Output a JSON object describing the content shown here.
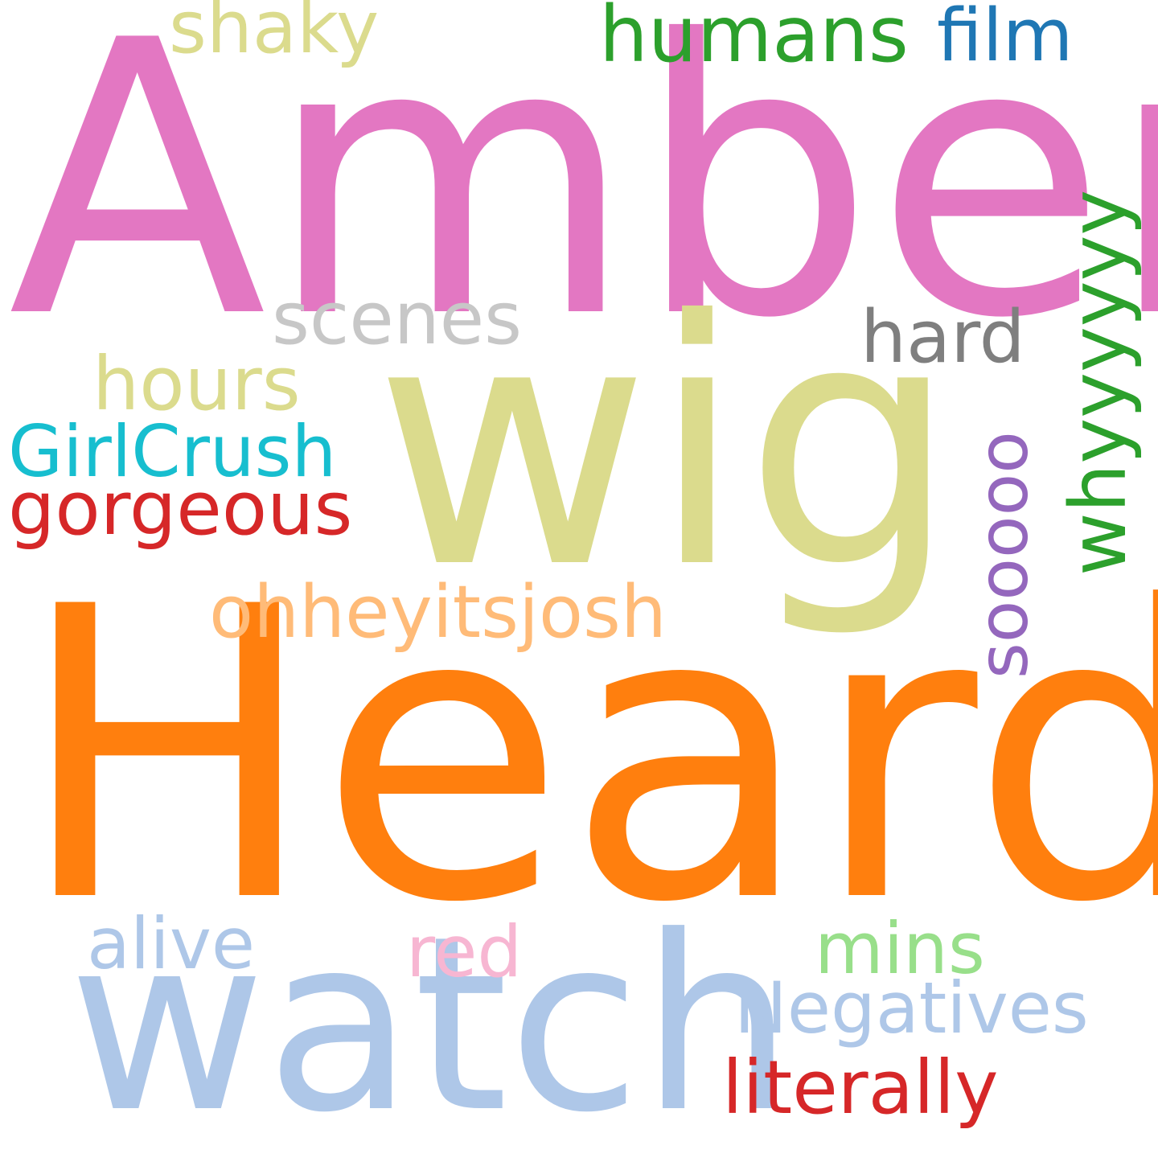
{
  "words": [
    {
      "text": "Amber",
      "color": "#e377c2",
      "orientation": "horizontal"
    },
    {
      "text": "Heard",
      "color": "#ff7f0e",
      "orientation": "horizontal"
    },
    {
      "text": "wig",
      "color": "#dbdb8d",
      "orientation": "horizontal"
    },
    {
      "text": "watch",
      "color": "#aec7e8",
      "orientation": "horizontal"
    },
    {
      "text": "humans",
      "color": "#2ca02c",
      "orientation": "horizontal"
    },
    {
      "text": "film",
      "color": "#1f77b4",
      "orientation": "horizontal"
    },
    {
      "text": "shaky",
      "color": "#dbdb8d",
      "orientation": "horizontal"
    },
    {
      "text": "whyyyyyy",
      "color": "#2ca02c",
      "orientation": "vertical"
    },
    {
      "text": "scenes",
      "color": "#c7c7c7",
      "orientation": "horizontal"
    },
    {
      "text": "hard",
      "color": "#7f7f7f",
      "orientation": "horizontal"
    },
    {
      "text": "hours",
      "color": "#dbdb8d",
      "orientation": "horizontal"
    },
    {
      "text": "GirlCrush",
      "color": "#17becf",
      "orientation": "horizontal"
    },
    {
      "text": "gorgeous",
      "color": "#d62728",
      "orientation": "horizontal"
    },
    {
      "text": "sooooo",
      "color": "#9467bd",
      "orientation": "vertical"
    },
    {
      "text": "ohheyitsjosh",
      "color": "#ffbb78",
      "orientation": "horizontal"
    },
    {
      "text": "alive",
      "color": "#aec7e8",
      "orientation": "horizontal"
    },
    {
      "text": "red",
      "color": "#f7b6d2",
      "orientation": "horizontal"
    },
    {
      "text": "mins",
      "color": "#98df8a",
      "orientation": "horizontal"
    },
    {
      "text": "Negatives",
      "color": "#aec7e8",
      "orientation": "horizontal"
    },
    {
      "text": "literally",
      "color": "#d62728",
      "orientation": "horizontal"
    }
  ]
}
